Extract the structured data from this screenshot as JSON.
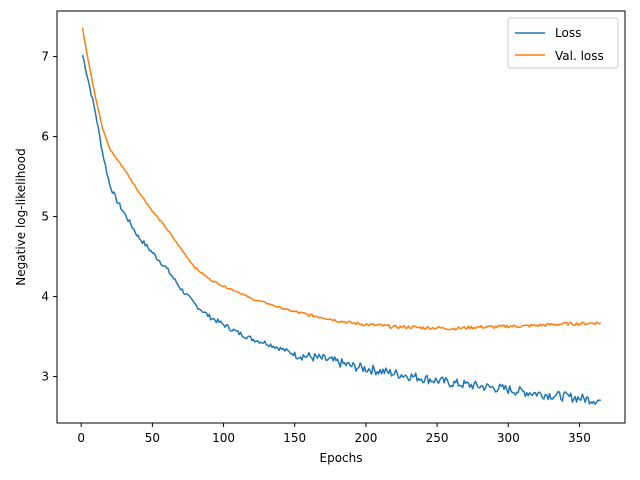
{
  "chart_data": {
    "type": "line",
    "title": "",
    "xlabel": "Epochs",
    "ylabel": "Negative log-likelihood",
    "xlim": [
      -17,
      382
    ],
    "ylim": [
      2.42,
      7.57
    ],
    "xticks": [
      0,
      50,
      100,
      150,
      200,
      250,
      300,
      350
    ],
    "yticks": [
      3,
      4,
      5,
      6,
      7
    ],
    "grid": false,
    "legend_position": "top-right",
    "series": [
      {
        "name": "Loss",
        "color": "#1f77b4",
        "noise": 0.03,
        "x": [
          1,
          5,
          10,
          15,
          20,
          25,
          30,
          40,
          50,
          60,
          70,
          80,
          90,
          100,
          110,
          120,
          130,
          140,
          150,
          160,
          170,
          180,
          190,
          200,
          210,
          220,
          230,
          240,
          250,
          260,
          270,
          280,
          290,
          300,
          310,
          320,
          330,
          340,
          350,
          360,
          365
        ],
        "y": [
          7.02,
          6.7,
          6.3,
          5.8,
          5.4,
          5.2,
          5.05,
          4.75,
          4.55,
          4.35,
          4.1,
          3.9,
          3.75,
          3.65,
          3.55,
          3.47,
          3.42,
          3.35,
          3.28,
          3.25,
          3.22,
          3.18,
          3.13,
          3.1,
          3.07,
          3.04,
          3.01,
          2.98,
          2.95,
          2.92,
          2.9,
          2.88,
          2.86,
          2.84,
          2.81,
          2.79,
          2.77,
          2.75,
          2.73,
          2.71,
          2.7
        ]
      },
      {
        "name": "Val. loss",
        "color": "#ff7f0e",
        "noise": 0.01,
        "x": [
          1,
          5,
          10,
          15,
          20,
          25,
          30,
          40,
          50,
          60,
          70,
          80,
          90,
          100,
          110,
          120,
          130,
          140,
          150,
          160,
          170,
          180,
          190,
          200,
          210,
          220,
          230,
          240,
          250,
          260,
          270,
          280,
          290,
          300,
          310,
          320,
          330,
          340,
          350,
          360,
          365
        ],
        "y": [
          7.35,
          6.95,
          6.5,
          6.1,
          5.85,
          5.72,
          5.6,
          5.32,
          5.07,
          4.85,
          4.6,
          4.36,
          4.22,
          4.13,
          4.06,
          3.97,
          3.92,
          3.86,
          3.81,
          3.77,
          3.74,
          3.7,
          3.67,
          3.65,
          3.64,
          3.62,
          3.62,
          3.61,
          3.61,
          3.6,
          3.61,
          3.62,
          3.62,
          3.63,
          3.63,
          3.64,
          3.65,
          3.66,
          3.66,
          3.67,
          3.67
        ]
      }
    ]
  }
}
